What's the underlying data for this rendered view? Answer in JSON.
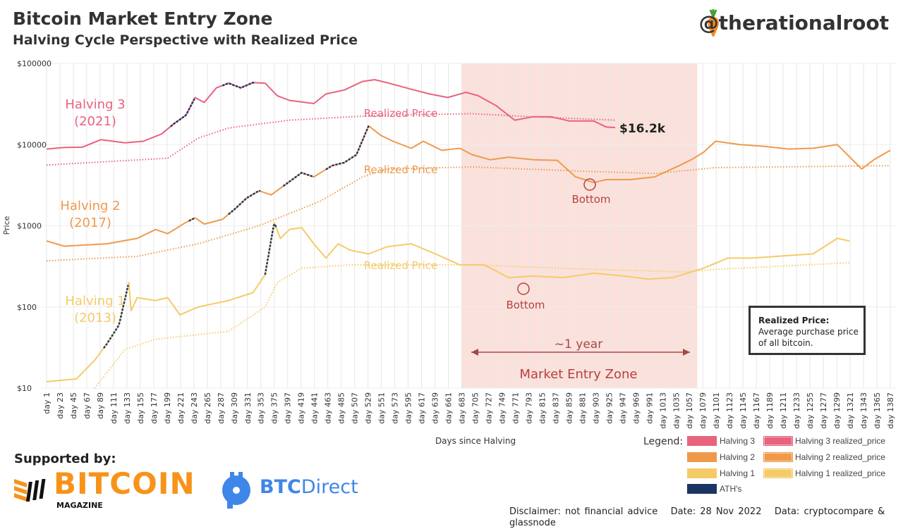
{
  "header": {
    "title": "Bitcoin Market Entry Zone",
    "subtitle": "Halving Cycle Perspective with Realized Price",
    "handle": "@therationalroot"
  },
  "colors": {
    "halving3": "#e8637d",
    "halving2": "#ef9a4b",
    "halving1": "#f5cb68",
    "ath": "#1b3563",
    "zone": "#fbe1dc",
    "annotation": "#b5413d"
  },
  "chart_data": {
    "type": "line",
    "title": "Bitcoin Market Entry Zone",
    "xlabel": "Days since Halving",
    "ylabel": "Price",
    "yscale": "log",
    "ylim": [
      10,
      100000
    ],
    "xlim": [
      1,
      1400
    ],
    "y_ticks": [
      "$100000",
      "$10000",
      "$1000",
      "$100",
      "$10"
    ],
    "y_tick_values": [
      100000,
      10000,
      1000,
      100,
      10
    ],
    "x_tick_start": 1,
    "x_tick_step": 22,
    "x_tick_end": 1387,
    "series": [
      {
        "name": "Halving 3",
        "key": "halving3",
        "style": "solid",
        "points": [
          [
            1,
            8800
          ],
          [
            30,
            9200
          ],
          [
            60,
            9300
          ],
          [
            90,
            11500
          ],
          [
            130,
            10500
          ],
          [
            160,
            11000
          ],
          [
            190,
            13500
          ],
          [
            210,
            18000
          ],
          [
            230,
            23000
          ],
          [
            245,
            38000
          ],
          [
            260,
            33000
          ],
          [
            280,
            50000
          ],
          [
            300,
            57000
          ],
          [
            320,
            50000
          ],
          [
            340,
            58000
          ],
          [
            360,
            57000
          ],
          [
            380,
            40000
          ],
          [
            400,
            35000
          ],
          [
            440,
            32000
          ],
          [
            460,
            42000
          ],
          [
            490,
            47000
          ],
          [
            520,
            60000
          ],
          [
            540,
            63000
          ],
          [
            560,
            58000
          ],
          [
            600,
            48000
          ],
          [
            630,
            42000
          ],
          [
            660,
            38000
          ],
          [
            690,
            44000
          ],
          [
            710,
            40000
          ],
          [
            740,
            30000
          ],
          [
            770,
            20000
          ],
          [
            800,
            22000
          ],
          [
            830,
            22000
          ],
          [
            860,
            19500
          ],
          [
            900,
            19500
          ],
          [
            920,
            16500
          ],
          [
            935,
            16200
          ]
        ]
      },
      {
        "name": "Halving 3 realized_price",
        "key": "halving3",
        "style": "dotted",
        "points": [
          [
            1,
            5600
          ],
          [
            200,
            6800
          ],
          [
            250,
            12000
          ],
          [
            300,
            16000
          ],
          [
            400,
            20000
          ],
          [
            500,
            22000
          ],
          [
            560,
            23000
          ],
          [
            700,
            24000
          ],
          [
            800,
            22000
          ],
          [
            935,
            20000
          ]
        ]
      },
      {
        "name": "Halving 2",
        "key": "halving2",
        "style": "solid",
        "points": [
          [
            1,
            650
          ],
          [
            30,
            560
          ],
          [
            100,
            600
          ],
          [
            150,
            700
          ],
          [
            180,
            900
          ],
          [
            200,
            800
          ],
          [
            230,
            1100
          ],
          [
            245,
            1250
          ],
          [
            260,
            1050
          ],
          [
            290,
            1200
          ],
          [
            310,
            1600
          ],
          [
            330,
            2200
          ],
          [
            350,
            2700
          ],
          [
            370,
            2400
          ],
          [
            400,
            3500
          ],
          [
            420,
            4500
          ],
          [
            440,
            4000
          ],
          [
            470,
            5500
          ],
          [
            490,
            6000
          ],
          [
            510,
            7500
          ],
          [
            530,
            17000
          ],
          [
            550,
            13000
          ],
          [
            570,
            11000
          ],
          [
            600,
            9000
          ],
          [
            620,
            11000
          ],
          [
            650,
            8500
          ],
          [
            680,
            9000
          ],
          [
            700,
            7500
          ],
          [
            730,
            6500
          ],
          [
            760,
            7000
          ],
          [
            800,
            6500
          ],
          [
            840,
            6400
          ],
          [
            870,
            4000
          ],
          [
            900,
            3400
          ],
          [
            920,
            3700
          ],
          [
            960,
            3700
          ],
          [
            1000,
            4000
          ],
          [
            1040,
            5500
          ],
          [
            1060,
            6500
          ],
          [
            1080,
            8000
          ],
          [
            1100,
            11000
          ],
          [
            1140,
            10000
          ],
          [
            1180,
            9500
          ],
          [
            1220,
            8800
          ],
          [
            1260,
            9000
          ],
          [
            1300,
            10000
          ],
          [
            1340,
            5000
          ],
          [
            1360,
            6500
          ],
          [
            1387,
            8500
          ]
        ]
      },
      {
        "name": "Halving 2 realized_price",
        "key": "halving2",
        "style": "dotted",
        "points": [
          [
            1,
            370
          ],
          [
            150,
            420
          ],
          [
            250,
            600
          ],
          [
            350,
            1000
          ],
          [
            450,
            2000
          ],
          [
            520,
            4000
          ],
          [
            560,
            5000
          ],
          [
            700,
            5300
          ],
          [
            880,
            4700
          ],
          [
            1000,
            4400
          ],
          [
            1100,
            5200
          ],
          [
            1387,
            5500
          ]
        ]
      },
      {
        "name": "Halving 1",
        "key": "halving1",
        "style": "solid",
        "points": [
          [
            1,
            12
          ],
          [
            50,
            13
          ],
          [
            80,
            22
          ],
          [
            100,
            35
          ],
          [
            120,
            60
          ],
          [
            136,
            200
          ],
          [
            140,
            90
          ],
          [
            150,
            130
          ],
          [
            180,
            120
          ],
          [
            200,
            130
          ],
          [
            220,
            80
          ],
          [
            250,
            100
          ],
          [
            300,
            120
          ],
          [
            340,
            150
          ],
          [
            360,
            250
          ],
          [
            375,
            1100
          ],
          [
            385,
            700
          ],
          [
            400,
            900
          ],
          [
            420,
            950
          ],
          [
            440,
            600
          ],
          [
            460,
            400
          ],
          [
            480,
            600
          ],
          [
            500,
            500
          ],
          [
            530,
            450
          ],
          [
            560,
            550
          ],
          [
            600,
            600
          ],
          [
            640,
            450
          ],
          [
            680,
            330
          ],
          [
            720,
            330
          ],
          [
            760,
            230
          ],
          [
            800,
            240
          ],
          [
            850,
            230
          ],
          [
            900,
            260
          ],
          [
            950,
            240
          ],
          [
            990,
            220
          ],
          [
            1030,
            230
          ],
          [
            1080,
            300
          ],
          [
            1120,
            400
          ],
          [
            1160,
            400
          ],
          [
            1220,
            430
          ],
          [
            1260,
            450
          ],
          [
            1300,
            700
          ],
          [
            1320,
            650
          ]
        ]
      },
      {
        "name": "Halving 1 realized_price",
        "key": "halving1",
        "style": "dotted",
        "points": [
          [
            80,
            10
          ],
          [
            130,
            30
          ],
          [
            180,
            40
          ],
          [
            300,
            50
          ],
          [
            360,
            100
          ],
          [
            380,
            200
          ],
          [
            420,
            300
          ],
          [
            500,
            330
          ],
          [
            700,
            330
          ],
          [
            900,
            290
          ],
          [
            1050,
            270
          ],
          [
            1100,
            290
          ],
          [
            1320,
            350
          ]
        ]
      }
    ],
    "ath_ranges": [
      {
        "series": "Halving 1",
        "days": [
          95,
          136
        ]
      },
      {
        "series": "Halving 1",
        "days": [
          360,
          378
        ]
      },
      {
        "series": "Halving 2",
        "days": [
          235,
          246
        ]
      },
      {
        "series": "Halving 2",
        "days": [
          300,
          352
        ]
      },
      {
        "series": "Halving 2",
        "days": [
          390,
          440
        ]
      },
      {
        "series": "Halving 2",
        "days": [
          460,
          530
        ]
      },
      {
        "series": "Halving 3",
        "days": [
          205,
          246
        ]
      },
      {
        "series": "Halving 3",
        "days": [
          290,
          345
        ]
      }
    ],
    "zone_days": [
      683,
      1070
    ],
    "annotations": {
      "h3_label": [
        "Halving 3",
        "(2021)"
      ],
      "h2_label": [
        "Halving 2",
        "(2017)"
      ],
      "h1_label": [
        "Halving 1",
        "(2013)"
      ],
      "realized": "Realized Price",
      "last_price": "$16.2k",
      "bottom": "Bottom",
      "year": "~1 year",
      "zone": "Market Entry Zone",
      "bottoms": [
        {
          "series": "Halving 2",
          "day": 900,
          "price": 3200
        },
        {
          "series": "Halving 1",
          "day": 765,
          "price": 170
        }
      ]
    },
    "legend": {
      "title": "Legend:",
      "position": "bottom-right",
      "items": [
        "Halving 3",
        "Halving 3 realized_price",
        "Halving 2",
        "Halving 2 realized_price",
        "Halving 1",
        "Halving 1 realized_price",
        "ATH's"
      ]
    }
  },
  "infobox": {
    "title": "Realized Price:",
    "text1": "Average purchase price",
    "text2": "of all bitcoin."
  },
  "sponsors": {
    "label": "Supported by:",
    "bitcoin": "BITCOIN",
    "magazine": "MAGAZINE",
    "btc": "BTC",
    "direct": "Direct"
  },
  "footer": {
    "disclaimer": "Disclaimer: not financial advice",
    "date": "Date: 28 Nov 2022",
    "data": "Data: cryptocompare & glassnode"
  }
}
